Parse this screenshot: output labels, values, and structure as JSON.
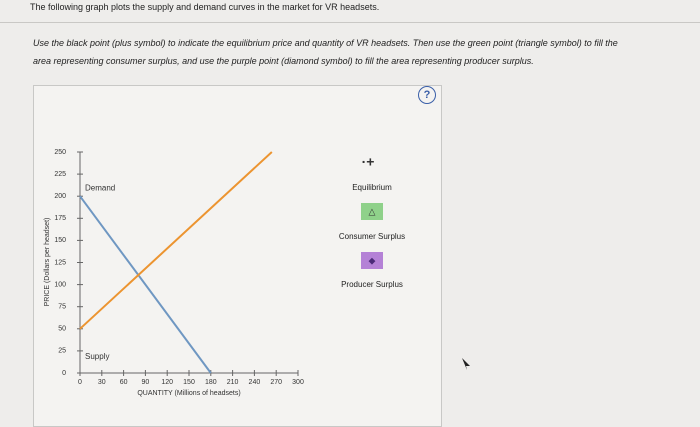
{
  "header": {
    "title": "The following graph plots the supply and demand curves in the market for VR headsets."
  },
  "instructions": [
    "Use the black point (plus symbol) to indicate the equilibrium price and quantity of VR headsets. Then use the green point (triangle symbol) to fill the",
    "area representing consumer surplus, and use the purple point (diamond symbol) to fill the area representing producer surplus."
  ],
  "help": "?",
  "tools": [
    {
      "label": "Equilibrium"
    },
    {
      "label": "Consumer Surplus"
    },
    {
      "label": "Producer Surplus"
    }
  ],
  "chart_data": {
    "type": "line",
    "x_label": "QUANTITY (Millions of headsets)",
    "y_label": "PRICE (Dollars per headset)",
    "xlim": [
      0,
      300
    ],
    "xticks": [
      0,
      30,
      60,
      90,
      120,
      150,
      180,
      210,
      240,
      270,
      300
    ],
    "ylim": [
      0,
      250
    ],
    "yticks": [
      0,
      25,
      50,
      75,
      100,
      125,
      150,
      175,
      200,
      225,
      250
    ],
    "series": [
      {
        "name": "Demand",
        "color": "#6f97c2",
        "x": [
          0,
          180
        ],
        "values": [
          200,
          0
        ]
      },
      {
        "name": "Supply",
        "color": "#ec9430",
        "x": [
          0,
          264
        ],
        "values": [
          50,
          250
        ]
      }
    ]
  }
}
